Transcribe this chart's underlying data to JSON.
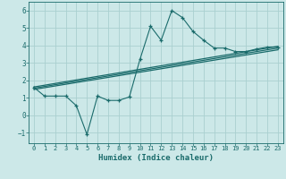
{
  "xlabel": "Humidex (Indice chaleur)",
  "bg_color": "#cce8e8",
  "grid_color": "#aad0d0",
  "line_color": "#1a6b6b",
  "xlim": [
    -0.5,
    23.5
  ],
  "ylim": [
    -1.6,
    6.5
  ],
  "xticks": [
    0,
    1,
    2,
    3,
    4,
    5,
    6,
    7,
    8,
    9,
    10,
    11,
    12,
    13,
    14,
    15,
    16,
    17,
    18,
    19,
    20,
    21,
    22,
    23
  ],
  "yticks": [
    -1,
    0,
    1,
    2,
    3,
    4,
    5,
    6
  ],
  "jagged_x": [
    0,
    1,
    2,
    3,
    4,
    5,
    6,
    7,
    8,
    9,
    10,
    11,
    12,
    13,
    14,
    15,
    16,
    17,
    18,
    19,
    20,
    21,
    22,
    23
  ],
  "jagged_y": [
    1.6,
    1.1,
    1.1,
    1.1,
    0.55,
    -1.1,
    1.1,
    0.85,
    0.85,
    1.05,
    3.2,
    5.1,
    4.3,
    6.0,
    5.6,
    4.8,
    4.3,
    3.85,
    3.85,
    3.65,
    3.65,
    3.8,
    3.9,
    3.9
  ],
  "line1_y": [
    1.55,
    3.85
  ],
  "line2_y": [
    1.62,
    3.95
  ],
  "line3_y": [
    1.48,
    3.75
  ]
}
